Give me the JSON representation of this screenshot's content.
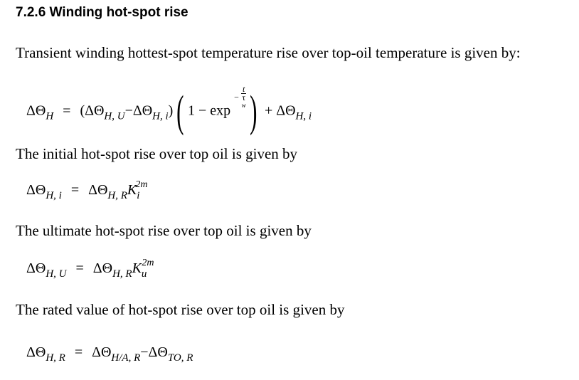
{
  "section": {
    "title": "7.2.6 Winding hot-spot rise"
  },
  "paragraphs": [
    "Transient winding hottest-spot temperature rise over top-oil temperature is given by:",
    "The initial hot-spot rise over top oil is given by",
    "The ultimate hot-spot rise over top oil is given by",
    "The rated value of hot-spot rise over top oil is given by"
  ],
  "eq1": {
    "lhs": "ΔΘ",
    "lhs_sub": "H",
    "eq": "=",
    "a": "(ΔΘ",
    "a_sub": "H, U",
    "minus": "−",
    "b": "ΔΘ",
    "b_sub": "H, i",
    "close": ")",
    "one": "1 − exp",
    "exp_minus": "−",
    "exp_num": "t",
    "exp_den": "τ",
    "exp_den_sub": "w",
    "plus": "+ ΔΘ",
    "plus_sub": "H, i"
  },
  "eq2": {
    "lhs": "ΔΘ",
    "lhs_sub": "H, i",
    "eq": "=",
    "rhs": "ΔΘ",
    "rhs_sub": "H, R",
    "k": "K",
    "k_sub": "i",
    "k_sup": "2m"
  },
  "eq3": {
    "lhs": "ΔΘ",
    "lhs_sub": "H, U",
    "eq": "=",
    "rhs": "ΔΘ",
    "rhs_sub": "H, R",
    "k": "K",
    "k_sub": "u",
    "k_sup": "2m"
  },
  "eq4": {
    "lhs": "ΔΘ",
    "lhs_sub": "H, R",
    "eq": "=",
    "a": "ΔΘ",
    "a_sub": "H/A, R",
    "minus": "−",
    "b": "ΔΘ",
    "b_sub": "TO, R"
  }
}
